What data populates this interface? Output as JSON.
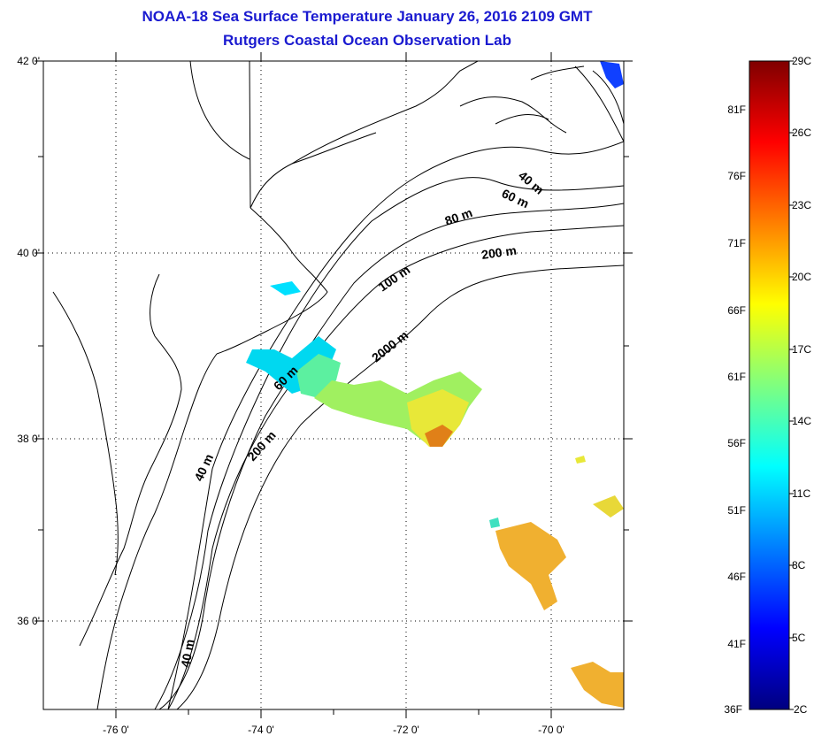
{
  "title": {
    "line1": "NOAA-18 Sea Surface Temperature January 26, 2016 2109 GMT",
    "line2": "Rutgers Coastal Ocean Observation Lab"
  },
  "map": {
    "lat_labels": [
      "42 0'",
      "40 0'",
      "38 0'",
      "36 0'"
    ],
    "lon_labels": [
      "-76 0'",
      "-74 0'",
      "-72 0'",
      "-70 0'"
    ],
    "contour_labels": [
      "40 m",
      "60 m",
      "80 m",
      "200 m",
      "100 m",
      "2000 m",
      "60 m",
      "200 m",
      "40 m",
      "40 m"
    ],
    "grid": "dotted"
  },
  "colorbar": {
    "min_c": 2,
    "max_c": 29,
    "celsius_labels": [
      "29C",
      "26C",
      "23C",
      "20C",
      "17C",
      "14C",
      "11C",
      "8C",
      "5C",
      "2C"
    ],
    "fahrenheit_labels": [
      "81F",
      "76F",
      "71F",
      "66F",
      "61F",
      "56F",
      "51F",
      "46F",
      "41F",
      "36F"
    ],
    "colors": [
      "#00007f",
      "#0000ff",
      "#007fff",
      "#00ffff",
      "#7fff7f",
      "#ffff00",
      "#ff7f00",
      "#ff0000",
      "#7f0000"
    ]
  }
}
